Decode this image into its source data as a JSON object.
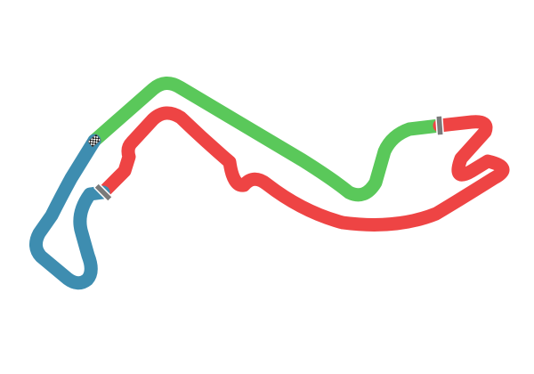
{
  "map": {
    "kind": "race-track-layout",
    "sectors": [
      {
        "id": "sector-1",
        "color": "#5ac85a"
      },
      {
        "id": "sector-2",
        "color": "#ee4444"
      },
      {
        "id": "sector-3",
        "color": "#3e8db0"
      }
    ],
    "markers": [
      {
        "id": "start-finish",
        "icon": "checkered-flag-icon"
      },
      {
        "id": "sector-1-2-boundary",
        "icon": "sector-marker-icon",
        "color": "#777777"
      },
      {
        "id": "sector-2-3-boundary",
        "icon": "sector-marker-icon",
        "color": "#777777"
      }
    ]
  }
}
